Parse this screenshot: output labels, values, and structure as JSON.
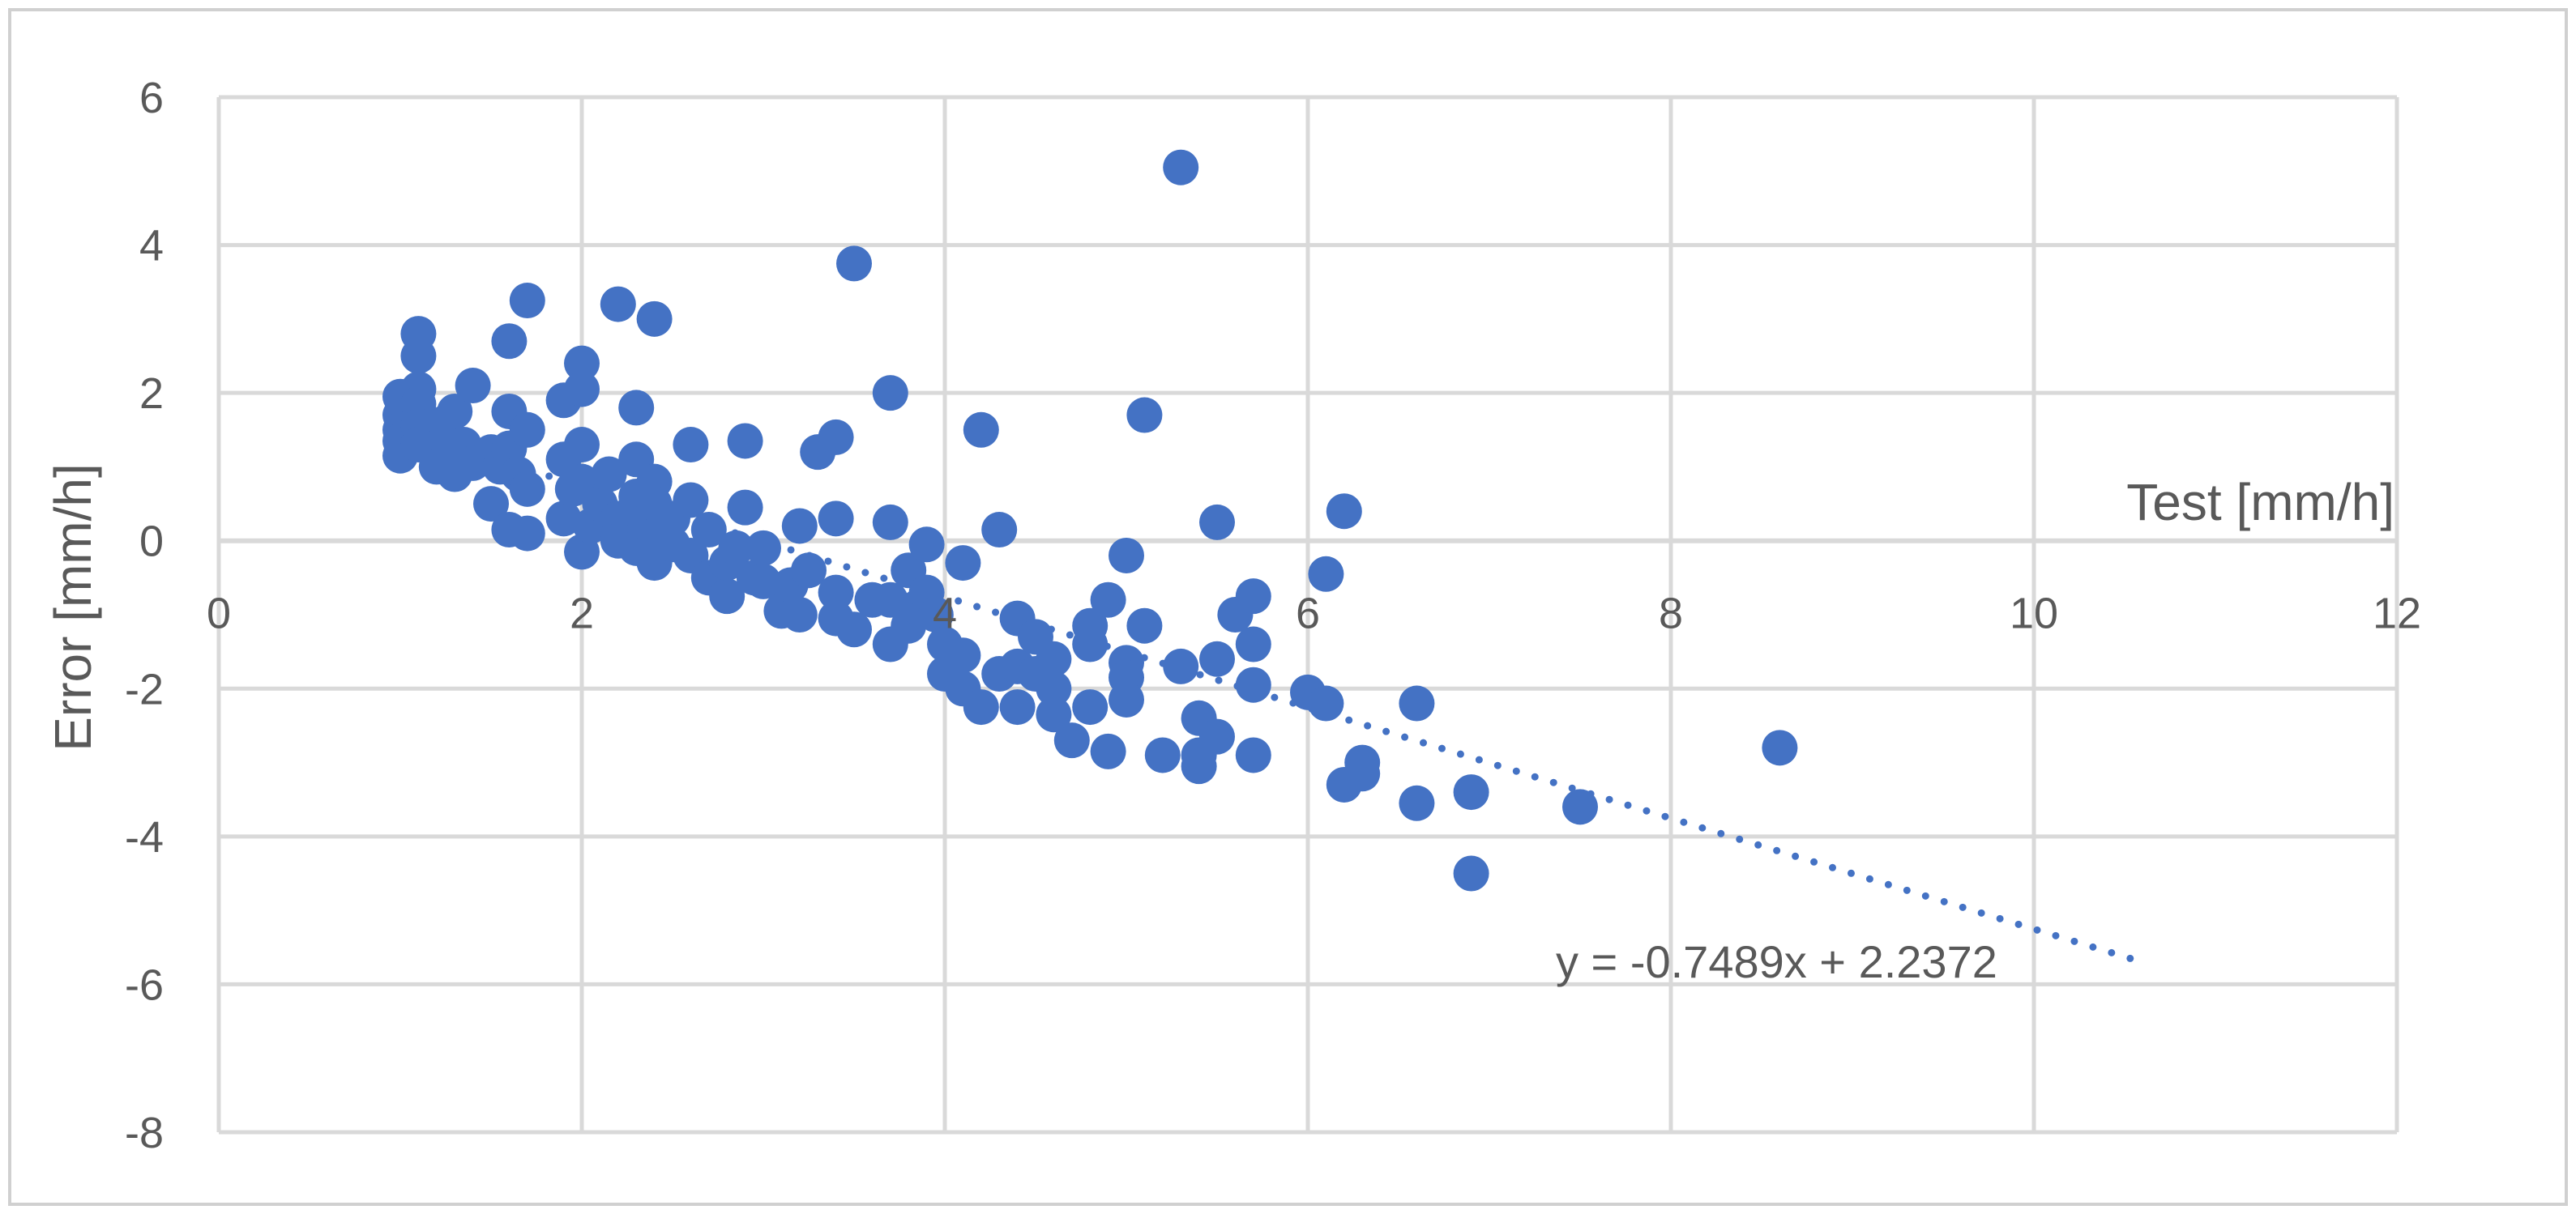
{
  "chart_data": {
    "type": "scatter",
    "title": "",
    "xlabel": "Test [mm/h]",
    "ylabel": "Error [mm/h]",
    "xlim": [
      0,
      12
    ],
    "ylim": [
      -8,
      6
    ],
    "x_ticks": [
      "0",
      "2",
      "4",
      "6",
      "8",
      "10",
      "12"
    ],
    "y_ticks": [
      "6",
      "4",
      "2",
      "0",
      "-2",
      "-4",
      "-6",
      "-8"
    ],
    "grid": true,
    "legend": "none",
    "marker_color": "#4472c4",
    "gridline_color": "#d9d9d9",
    "series": [
      {
        "points": [
          [
            1.0,
            1.95
          ],
          [
            1.0,
            1.7
          ],
          [
            1.0,
            1.5
          ],
          [
            1.0,
            1.35
          ],
          [
            1.0,
            1.15
          ],
          [
            1.1,
            2.8
          ],
          [
            1.1,
            2.5
          ],
          [
            1.1,
            2.05
          ],
          [
            1.1,
            1.85
          ],
          [
            1.1,
            1.55
          ],
          [
            1.1,
            1.3
          ],
          [
            1.2,
            1.2
          ],
          [
            1.2,
            1.0
          ],
          [
            1.25,
            1.6
          ],
          [
            1.3,
            1.75
          ],
          [
            1.3,
            0.9
          ],
          [
            1.35,
            1.3
          ],
          [
            1.4,
            2.1
          ],
          [
            1.4,
            1.05
          ],
          [
            1.5,
            0.5
          ],
          [
            1.5,
            1.2
          ],
          [
            1.55,
            1.0
          ],
          [
            1.6,
            2.7
          ],
          [
            1.6,
            1.75
          ],
          [
            1.6,
            1.25
          ],
          [
            1.6,
            0.15
          ],
          [
            1.65,
            0.9
          ],
          [
            1.7,
            3.25
          ],
          [
            1.7,
            1.5
          ],
          [
            1.7,
            0.7
          ],
          [
            1.7,
            0.1
          ],
          [
            1.9,
            1.9
          ],
          [
            1.9,
            1.1
          ],
          [
            1.9,
            0.3
          ],
          [
            1.95,
            0.7
          ],
          [
            2.0,
            2.4
          ],
          [
            2.0,
            2.05
          ],
          [
            2.0,
            1.3
          ],
          [
            2.0,
            0.8
          ],
          [
            2.0,
            -0.15
          ],
          [
            2.05,
            0.2
          ],
          [
            2.1,
            0.5
          ],
          [
            2.15,
            0.9
          ],
          [
            2.2,
            3.2
          ],
          [
            2.2,
            0.3
          ],
          [
            2.2,
            0.0
          ],
          [
            2.3,
            1.8
          ],
          [
            2.3,
            1.1
          ],
          [
            2.3,
            0.6
          ],
          [
            2.3,
            -0.1
          ],
          [
            2.35,
            0.25
          ],
          [
            2.4,
            3.0
          ],
          [
            2.4,
            0.8
          ],
          [
            2.4,
            0.5
          ],
          [
            2.4,
            -0.3
          ],
          [
            2.45,
            0.1
          ],
          [
            2.5,
            0.3
          ],
          [
            2.5,
            -0.05
          ],
          [
            2.6,
            1.3
          ],
          [
            2.6,
            0.55
          ],
          [
            2.6,
            -0.2
          ],
          [
            2.7,
            0.15
          ],
          [
            2.7,
            -0.5
          ],
          [
            2.8,
            -0.75
          ],
          [
            2.8,
            -0.3
          ],
          [
            2.85,
            -0.1
          ],
          [
            2.9,
            1.35
          ],
          [
            2.9,
            0.45
          ],
          [
            2.95,
            -0.5
          ],
          [
            3.0,
            -0.1
          ],
          [
            3.0,
            -0.55
          ],
          [
            3.1,
            -0.95
          ],
          [
            3.15,
            -0.6
          ],
          [
            3.2,
            0.2
          ],
          [
            3.2,
            -1.0
          ],
          [
            3.25,
            -0.4
          ],
          [
            3.3,
            1.2
          ],
          [
            3.4,
            1.4
          ],
          [
            3.4,
            0.3
          ],
          [
            3.4,
            -0.7
          ],
          [
            3.4,
            -1.05
          ],
          [
            3.5,
            3.75
          ],
          [
            3.5,
            -1.2
          ],
          [
            3.6,
            -0.8
          ],
          [
            3.7,
            2.0
          ],
          [
            3.7,
            0.25
          ],
          [
            3.7,
            -0.8
          ],
          [
            3.7,
            -1.4
          ],
          [
            3.8,
            -0.4
          ],
          [
            3.8,
            -1.15
          ],
          [
            3.85,
            -0.9
          ],
          [
            3.9,
            -0.05
          ],
          [
            3.9,
            -0.7
          ],
          [
            3.95,
            -1.0
          ],
          [
            4.0,
            -1.4
          ],
          [
            4.0,
            -1.8
          ],
          [
            4.1,
            -0.3
          ],
          [
            4.1,
            -1.55
          ],
          [
            4.1,
            -2.0
          ],
          [
            4.2,
            1.5
          ],
          [
            4.2,
            -2.25
          ],
          [
            4.3,
            0.15
          ],
          [
            4.3,
            -1.8
          ],
          [
            4.4,
            -1.05
          ],
          [
            4.4,
            -1.7
          ],
          [
            4.4,
            -2.25
          ],
          [
            4.5,
            -1.3
          ],
          [
            4.5,
            -1.8
          ],
          [
            4.6,
            -1.6
          ],
          [
            4.6,
            -2.0
          ],
          [
            4.6,
            -2.35
          ],
          [
            4.7,
            -2.7
          ],
          [
            4.8,
            -1.15
          ],
          [
            4.8,
            -1.4
          ],
          [
            4.8,
            -2.25
          ],
          [
            4.9,
            -0.8
          ],
          [
            4.9,
            -2.85
          ],
          [
            5.0,
            -0.2
          ],
          [
            5.0,
            -1.65
          ],
          [
            5.0,
            -1.85
          ],
          [
            5.0,
            -2.15
          ],
          [
            5.1,
            1.7
          ],
          [
            5.1,
            -1.15
          ],
          [
            5.2,
            -2.9
          ],
          [
            5.3,
            5.05
          ],
          [
            5.3,
            -1.7
          ],
          [
            5.4,
            -2.4
          ],
          [
            5.4,
            -2.9
          ],
          [
            5.4,
            -3.05
          ],
          [
            5.5,
            0.25
          ],
          [
            5.5,
            -1.6
          ],
          [
            5.5,
            -2.65
          ],
          [
            5.6,
            -1.0
          ],
          [
            5.7,
            -0.75
          ],
          [
            5.7,
            -1.4
          ],
          [
            5.7,
            -1.95
          ],
          [
            5.7,
            -2.9
          ],
          [
            6.0,
            -2.05
          ],
          [
            6.1,
            -0.45
          ],
          [
            6.1,
            -2.2
          ],
          [
            6.2,
            0.4
          ],
          [
            6.2,
            -3.3
          ],
          [
            6.3,
            -3.0
          ],
          [
            6.3,
            -3.15
          ],
          [
            6.6,
            -2.2
          ],
          [
            6.6,
            -3.55
          ],
          [
            6.9,
            -3.4
          ],
          [
            6.9,
            -4.5
          ],
          [
            7.5,
            -3.6
          ],
          [
            8.6,
            -2.8
          ]
        ]
      }
    ],
    "trendline": {
      "type": "linear",
      "slope": -0.7489,
      "intercept": 2.2372,
      "x_range": [
        1.0,
        10.55
      ],
      "style": "dotted",
      "label": "y = -0.7489x + 2.2372"
    }
  }
}
